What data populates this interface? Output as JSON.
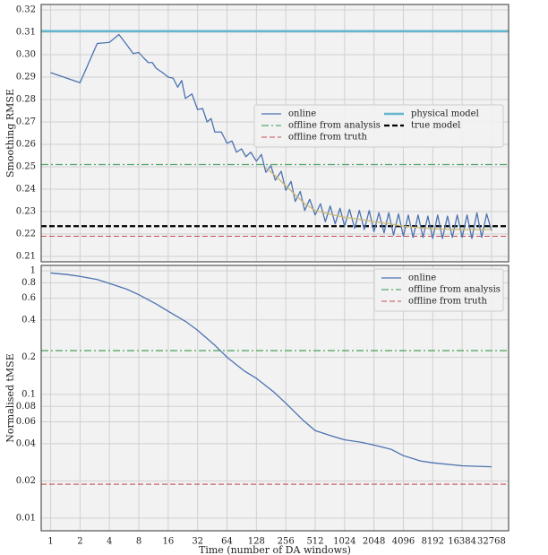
{
  "chart_data": [
    {
      "type": "line",
      "ylabel": "Smoothing RMSE",
      "log_x": true,
      "log_y": false,
      "grid": true,
      "legend": "center right",
      "legend_columns": 2,
      "xlim": [
        0.8,
        49000
      ],
      "xticks": [
        1,
        2,
        4,
        8,
        16,
        32,
        64,
        128,
        256,
        512,
        1024,
        2048,
        4096,
        8192,
        16384,
        32768
      ],
      "ylim": [
        0.2076,
        0.3224
      ],
      "yticks": [
        0.21,
        0.22,
        0.23,
        0.24,
        0.25,
        0.26,
        0.27,
        0.28,
        0.29,
        {
          "value": 0.3,
          "label": "0.30"
        },
        0.31,
        0.32
      ],
      "series": [
        {
          "name": "online",
          "color": "#4c72b0",
          "width": 1.3,
          "x": [
            1,
            2,
            3,
            4,
            5,
            6,
            7,
            8,
            9,
            10,
            11,
            12,
            14,
            16,
            18,
            20,
            22,
            24,
            28,
            32,
            36,
            40,
            44,
            48,
            56,
            64,
            72,
            80,
            90,
            100,
            112,
            128,
            144,
            160,
            180,
            200,
            230,
            256,
            290,
            320,
            360,
            400,
            450,
            512,
            580,
            650,
            730,
            820,
            920,
            1024,
            1150,
            1300,
            1450,
            1630,
            1830,
            2048,
            2300,
            2600,
            2900,
            3250,
            3650,
            4096,
            4600,
            5150,
            5800,
            6500,
            7300,
            8192,
            9200,
            10300,
            11600,
            13000,
            14600,
            16384,
            18400,
            20600,
            23200,
            26000,
            29200,
            32768
          ],
          "values": [
            0.292,
            0.2875,
            0.305,
            0.3055,
            0.309,
            0.3045,
            0.3005,
            0.301,
            0.2985,
            0.2965,
            0.2965,
            0.294,
            0.292,
            0.29,
            0.2895,
            0.2855,
            0.2885,
            0.2805,
            0.2825,
            0.2755,
            0.276,
            0.27,
            0.2715,
            0.2655,
            0.2655,
            0.2605,
            0.2615,
            0.2565,
            0.258,
            0.2545,
            0.2565,
            0.2525,
            0.2555,
            0.2475,
            0.2505,
            0.244,
            0.248,
            0.2395,
            0.2435,
            0.2345,
            0.239,
            0.2305,
            0.2355,
            0.2285,
            0.2335,
            0.2255,
            0.2325,
            0.2245,
            0.2315,
            0.2235,
            0.231,
            0.2225,
            0.2305,
            0.222,
            0.2305,
            0.221,
            0.2295,
            0.2205,
            0.2295,
            0.2195,
            0.229,
            0.219,
            0.2285,
            0.2185,
            0.2285,
            0.2185,
            0.228,
            0.218,
            0.2285,
            0.218,
            0.228,
            0.2185,
            0.2285,
            0.2185,
            0.2285,
            0.218,
            0.2295,
            0.2185,
            0.229,
            0.2215
          ]
        },
        {
          "color": "#ccb974",
          "width": 1.3,
          "x": [
            160,
            200,
            256,
            320,
            400,
            512,
            700,
            1024,
            1500,
            2048,
            3000,
            4096,
            6000,
            8192,
            16384,
            32768
          ],
          "values": [
            0.2495,
            0.246,
            0.2415,
            0.2375,
            0.2335,
            0.2305,
            0.229,
            0.2275,
            0.2265,
            0.2255,
            0.2245,
            0.2235,
            0.2228,
            0.2223,
            0.222,
            0.222
          ]
        }
      ],
      "hlines": [
        {
          "name": "offline from analysis",
          "color": "#55a868",
          "value": 0.251,
          "style": "dashdot",
          "width": 1.3
        },
        {
          "name": "offline from truth",
          "color": "#c44e52",
          "value": 0.219,
          "style": "dashed",
          "width": 1.1
        },
        {
          "name": "physical model",
          "color": "#64b5cd",
          "value": 0.3105,
          "style": "solid",
          "width": 2.5
        },
        {
          "name": "true model",
          "color": "#000000",
          "value": 0.2235,
          "style": "dashed",
          "width": 2.2
        }
      ]
    },
    {
      "type": "line",
      "xlabel": "Time (number of DA windows)",
      "ylabel": "Normalised tMSE",
      "log_x": true,
      "log_y": true,
      "grid": true,
      "legend": "upper right",
      "legend_columns": 1,
      "xlim": [
        0.8,
        49000
      ],
      "xticks": [
        1,
        2,
        4,
        8,
        16,
        32,
        64,
        128,
        256,
        512,
        1024,
        2048,
        4096,
        8192,
        16384,
        32768
      ],
      "ylim": [
        0.0079,
        1.105
      ],
      "yticks": [
        0.01,
        0.02,
        0.04,
        0.06,
        0.08,
        0.1,
        0.2,
        0.4,
        0.6,
        0.8,
        1
      ],
      "series": [
        {
          "name": "online",
          "color": "#4c72b0",
          "width": 1.3,
          "x": [
            1,
            1.5,
            2,
            3,
            4,
            6,
            8,
            12,
            16,
            24,
            32,
            48,
            64,
            96,
            128,
            192,
            256,
            384,
            512,
            768,
            1024,
            1536,
            2048,
            3072,
            4096,
            6144,
            8192,
            16384,
            32768
          ],
          "values": [
            0.96,
            0.93,
            0.9,
            0.85,
            0.79,
            0.71,
            0.64,
            0.54,
            0.47,
            0.39,
            0.33,
            0.25,
            0.2,
            0.155,
            0.135,
            0.105,
            0.085,
            0.062,
            0.051,
            0.046,
            0.043,
            0.041,
            0.039,
            0.036,
            0.032,
            0.029,
            0.028,
            0.0265,
            0.026
          ]
        }
      ],
      "hlines": [
        {
          "name": "offline from analysis",
          "color": "#55a868",
          "value": 0.226,
          "style": "dashdot",
          "width": 1.3
        },
        {
          "name": "offline from truth",
          "color": "#c44e52",
          "value": 0.0188,
          "style": "dashed",
          "width": 1.1
        }
      ]
    }
  ]
}
